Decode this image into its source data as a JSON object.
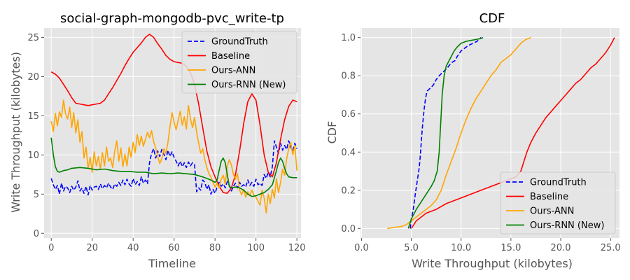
{
  "chart_data": [
    {
      "type": "line",
      "title": "social-graph-mongodb-pvc_write-tp",
      "xlabel": "Timeline",
      "ylabel": "Write Throughput (kilobytes)",
      "xlim": [
        -3.5,
        122
      ],
      "ylim": [
        -0.6,
        26.2
      ],
      "xticks": [
        0,
        20,
        40,
        60,
        80,
        100,
        120
      ],
      "yticks": [
        0,
        5,
        10,
        15,
        20,
        25
      ],
      "grid": true,
      "legend_position": "upper-right",
      "series": [
        {
          "name": "GroundTruth",
          "color": "#0000ff",
          "dash": "dashed",
          "x": [
            0,
            1,
            2,
            3,
            4,
            5,
            6,
            7,
            8,
            9,
            10,
            11,
            12,
            13,
            14,
            15,
            16,
            17,
            18,
            19,
            20,
            21,
            22,
            23,
            24,
            25,
            26,
            27,
            28,
            29,
            30,
            31,
            32,
            33,
            34,
            35,
            36,
            37,
            38,
            39,
            40,
            41,
            42,
            43,
            44,
            45,
            46,
            47,
            48,
            49,
            50,
            51,
            52,
            53,
            54,
            55,
            56,
            57,
            58,
            59,
            60,
            61,
            62,
            63,
            64,
            65,
            66,
            67,
            68,
            69,
            70,
            71,
            72,
            73,
            74,
            75,
            76,
            77,
            78,
            79,
            80,
            81,
            82,
            83,
            84,
            85,
            86,
            87,
            88,
            89,
            90,
            91,
            92,
            93,
            94,
            95,
            96,
            97,
            98,
            99,
            100,
            101,
            102,
            103,
            104,
            105,
            106,
            107,
            108,
            109,
            110,
            111,
            112,
            113,
            114,
            115,
            116,
            117,
            118,
            119,
            120
          ],
          "y": [
            7.0,
            6.2,
            5.6,
            6.1,
            5.0,
            6.4,
            5.4,
            6.0,
            5.8,
            5.2,
            6.0,
            5.5,
            5.9,
            6.7,
            5.4,
            5.8,
            5.1,
            6.0,
            4.9,
            6.1,
            5.5,
            5.9,
            6.0,
            5.6,
            6.3,
            5.7,
            6.1,
            5.8,
            6.4,
            5.9,
            5.6,
            6.3,
            6.0,
            6.5,
            6.1,
            6.8,
            6.2,
            6.9,
            6.3,
            6.0,
            7.0,
            6.2,
            6.6,
            6.1,
            7.2,
            6.4,
            6.8,
            6.3,
            9.0,
            10.2,
            10.8,
            9.6,
            10.5,
            9.8,
            10.7,
            10.1,
            9.4,
            10.6,
            9.8,
            10.4,
            9.7,
            9.2,
            8.6,
            9.2,
            8.5,
            9.0,
            8.4,
            9.1,
            8.6,
            9.0,
            8.8,
            5.3,
            5.8,
            5.5,
            6.8,
            6.5,
            5.6,
            6.2,
            5.0,
            5.6,
            5.1,
            5.9,
            6.5,
            6.0,
            6.3,
            5.8,
            6.6,
            6.1,
            5.4,
            6.0,
            6.4,
            5.8,
            6.5,
            6.0,
            6.2,
            5.9,
            6.8,
            6.1,
            6.5,
            6.0,
            6.9,
            6.2,
            6.4,
            6.1,
            7.5,
            7.0,
            7.8,
            7.2,
            8.5,
            11.8,
            11.0,
            10.2,
            11.5,
            10.6,
            11.2,
            10.7,
            11.8,
            11.0,
            10.5,
            11.5,
            10.8
          ]
        },
        {
          "name": "Baseline",
          "color": "#ff0000",
          "dash": "solid",
          "x": [
            0,
            2,
            4,
            6,
            8,
            10,
            12,
            14,
            16,
            18,
            20,
            22,
            24,
            26,
            28,
            30,
            32,
            34,
            36,
            38,
            40,
            42,
            44,
            46,
            48,
            50,
            52,
            54,
            56,
            58,
            60,
            62,
            64,
            66,
            68,
            70,
            72,
            74,
            76,
            78,
            80,
            82,
            84,
            86,
            88,
            90,
            92,
            94,
            96,
            98,
            100,
            102,
            104,
            106,
            108,
            110,
            112,
            114,
            116,
            118,
            120
          ],
          "y": [
            20.6,
            20.3,
            19.8,
            19.0,
            18.2,
            17.3,
            16.6,
            16.5,
            16.4,
            16.3,
            16.4,
            16.5,
            16.6,
            17.0,
            17.8,
            18.6,
            19.5,
            20.4,
            21.4,
            22.3,
            23.1,
            23.7,
            24.3,
            25.0,
            25.4,
            25.0,
            24.2,
            23.5,
            22.7,
            22.2,
            21.9,
            21.8,
            21.7,
            21.3,
            20.5,
            19.0,
            16.5,
            13.5,
            10.5,
            8.5,
            7.2,
            6.0,
            5.2,
            5.1,
            5.8,
            7.5,
            10.5,
            14.0,
            16.8,
            17.8,
            17.0,
            13.8,
            10.0,
            7.8,
            7.2,
            9.0,
            12.0,
            14.5,
            16.2,
            17.0,
            16.8
          ]
        },
        {
          "name": "Ours-ANN",
          "color": "#ffa500",
          "dash": "solid",
          "x": [
            0,
            1,
            2,
            3,
            4,
            5,
            6,
            7,
            8,
            9,
            10,
            11,
            12,
            13,
            14,
            15,
            16,
            17,
            18,
            19,
            20,
            21,
            22,
            23,
            24,
            25,
            26,
            27,
            28,
            29,
            30,
            31,
            32,
            33,
            34,
            35,
            36,
            37,
            38,
            39,
            40,
            41,
            42,
            43,
            44,
            45,
            46,
            47,
            48,
            49,
            50,
            51,
            52,
            53,
            54,
            55,
            56,
            57,
            58,
            59,
            60,
            61,
            62,
            63,
            64,
            65,
            66,
            67,
            68,
            69,
            70,
            71,
            72,
            73,
            74,
            75,
            76,
            77,
            78,
            79,
            80,
            81,
            82,
            83,
            84,
            85,
            86,
            87,
            88,
            89,
            90,
            91,
            92,
            93,
            94,
            95,
            96,
            97,
            98,
            99,
            100,
            101,
            102,
            103,
            104,
            105,
            106,
            107,
            108,
            109,
            110,
            111,
            112,
            113,
            114,
            115,
            116,
            117,
            118,
            119,
            120
          ],
          "y": [
            14.3,
            13.0,
            15.3,
            13.7,
            15.5,
            14.8,
            17.0,
            15.2,
            14.6,
            16.1,
            13.5,
            15.4,
            12.8,
            14.5,
            11.6,
            13.0,
            9.6,
            11.0,
            8.3,
            9.7,
            7.8,
            10.4,
            8.6,
            9.8,
            8.2,
            10.3,
            8.6,
            11.0,
            9.2,
            9.6,
            8.4,
            10.5,
            11.8,
            9.2,
            10.9,
            8.5,
            10.1,
            8.6,
            11.0,
            9.7,
            11.6,
            10.3,
            12.6,
            11.2,
            12.4,
            11.1,
            12.0,
            12.9,
            12.2,
            13.1,
            11.7,
            10.9,
            9.8,
            8.9,
            9.5,
            10.8,
            10.2,
            11.6,
            13.6,
            15.4,
            14.2,
            13.2,
            14.4,
            15.6,
            13.8,
            14.9,
            13.3,
            16.3,
            14.6,
            13.5,
            14.8,
            12.9,
            11.5,
            10.2,
            10.8,
            9.4,
            8.4,
            7.6,
            7.2,
            6.5,
            5.9,
            6.4,
            5.8,
            6.9,
            7.4,
            6.3,
            8.6,
            9.4,
            8.7,
            7.5,
            6.9,
            7.6,
            5.5,
            4.9,
            5.6,
            4.6,
            5.3,
            4.8,
            5.5,
            4.9,
            4.6,
            4.1,
            3.6,
            5.5,
            4.5,
            2.6,
            5.0,
            3.8,
            5.6,
            4.5,
            7.0,
            5.2,
            6.5,
            8.2,
            7.4,
            9.5,
            10.8,
            11.6,
            10.0,
            11.2,
            8.0
          ]
        },
        {
          "name": "Ours-RNN (New)",
          "color": "#008000",
          "dash": "solid",
          "x": [
            0,
            1,
            2,
            3,
            4,
            6,
            8,
            10,
            14,
            18,
            22,
            26,
            30,
            34,
            38,
            42,
            46,
            50,
            54,
            58,
            62,
            66,
            70,
            74,
            76,
            78,
            80,
            81,
            82,
            83,
            84,
            85,
            86,
            87,
            88,
            90,
            92,
            94,
            96,
            98,
            100,
            102,
            104,
            106,
            108,
            110,
            111,
            112,
            113,
            114,
            115,
            116,
            118,
            120
          ],
          "y": [
            12.2,
            10.0,
            8.5,
            7.9,
            7.8,
            8.0,
            8.1,
            8.3,
            8.4,
            8.3,
            8.1,
            8.2,
            8.0,
            7.9,
            7.9,
            7.8,
            7.8,
            7.6,
            7.7,
            7.6,
            7.7,
            7.6,
            7.5,
            7.2,
            7.0,
            6.8,
            6.5,
            6.8,
            8.0,
            9.2,
            9.6,
            9.0,
            7.5,
            6.0,
            5.8,
            5.9,
            5.8,
            5.5,
            5.0,
            4.7,
            4.8,
            5.0,
            5.2,
            5.6,
            6.2,
            8.0,
            9.0,
            9.6,
            9.2,
            8.3,
            7.6,
            7.2,
            7.1,
            7.1
          ]
        }
      ]
    },
    {
      "type": "line",
      "title": "CDF",
      "xlabel": "Write Throughput (kilobytes)",
      "ylabel": "CDF",
      "xlim": [
        -0.1,
        25.9
      ],
      "ylim": [
        -0.05,
        1.05
      ],
      "xticks": [
        0,
        5,
        10,
        15,
        20,
        25
      ],
      "yticks": [
        0.0,
        0.2,
        0.4,
        0.6,
        0.8,
        1.0
      ],
      "grid": true,
      "legend_position": "lower-right",
      "series": [
        {
          "name": "GroundTruth",
          "color": "#0000ff",
          "dash": "dashed",
          "x": [
            4.9,
            5.0,
            5.2,
            5.4,
            5.6,
            5.8,
            5.9,
            6.0,
            6.1,
            6.2,
            6.3,
            6.4,
            6.5,
            6.6,
            6.8,
            7.0,
            7.2,
            7.5,
            7.8,
            8.2,
            8.6,
            8.9,
            9.1,
            9.4,
            9.6,
            10.0,
            10.5,
            10.8,
            11.2,
            11.6,
            12.0
          ],
          "y": [
            0.0,
            0.05,
            0.1,
            0.18,
            0.25,
            0.32,
            0.38,
            0.45,
            0.52,
            0.58,
            0.63,
            0.67,
            0.7,
            0.72,
            0.73,
            0.74,
            0.75,
            0.78,
            0.8,
            0.82,
            0.84,
            0.86,
            0.87,
            0.88,
            0.9,
            0.93,
            0.95,
            0.96,
            0.97,
            0.98,
            1.0
          ]
        },
        {
          "name": "Baseline",
          "color": "#ff0000",
          "dash": "solid",
          "x": [
            5.0,
            5.5,
            6.5,
            7.5,
            8.5,
            10.0,
            11.5,
            13.0,
            14.5,
            15.5,
            16.0,
            16.3,
            16.6,
            17.0,
            17.5,
            18.0,
            18.5,
            19.0,
            19.5,
            20.0,
            20.5,
            21.0,
            21.5,
            22.0,
            22.5,
            23.0,
            23.5,
            24.0,
            24.5,
            25.0,
            25.4
          ],
          "y": [
            0.0,
            0.04,
            0.08,
            0.1,
            0.13,
            0.16,
            0.19,
            0.22,
            0.25,
            0.27,
            0.3,
            0.35,
            0.4,
            0.45,
            0.5,
            0.54,
            0.58,
            0.61,
            0.64,
            0.67,
            0.7,
            0.73,
            0.76,
            0.78,
            0.81,
            0.84,
            0.86,
            0.89,
            0.92,
            0.96,
            1.0
          ]
        },
        {
          "name": "Ours-ANN",
          "color": "#ffa500",
          "dash": "solid",
          "x": [
            2.6,
            3.2,
            4.0,
            4.5,
            5.0,
            5.5,
            6.0,
            6.5,
            7.0,
            7.5,
            8.0,
            8.5,
            9.0,
            9.5,
            10.0,
            10.5,
            11.0,
            11.5,
            12.0,
            12.5,
            13.0,
            13.5,
            14.0,
            14.5,
            15.0,
            15.5,
            16.0,
            16.5,
            17.0
          ],
          "y": [
            0.0,
            0.005,
            0.01,
            0.02,
            0.04,
            0.06,
            0.08,
            0.1,
            0.12,
            0.15,
            0.2,
            0.28,
            0.35,
            0.42,
            0.5,
            0.57,
            0.63,
            0.68,
            0.72,
            0.76,
            0.8,
            0.83,
            0.87,
            0.89,
            0.91,
            0.94,
            0.97,
            0.99,
            1.0
          ]
        },
        {
          "name": "Ours-RNN (New)",
          "color": "#008000",
          "dash": "solid",
          "x": [
            4.7,
            5.0,
            5.5,
            6.0,
            6.5,
            7.0,
            7.3,
            7.6,
            7.8,
            7.9,
            8.0,
            8.1,
            8.2,
            8.3,
            8.5,
            8.8,
            9.0,
            9.3,
            9.6,
            9.8,
            10.0,
            10.5,
            11.0,
            11.5,
            12.0,
            12.2
          ],
          "y": [
            0.0,
            0.05,
            0.1,
            0.14,
            0.18,
            0.22,
            0.25,
            0.3,
            0.4,
            0.5,
            0.6,
            0.7,
            0.75,
            0.8,
            0.85,
            0.88,
            0.9,
            0.93,
            0.95,
            0.96,
            0.97,
            0.98,
            0.985,
            0.99,
            0.995,
            1.0
          ]
        }
      ]
    }
  ]
}
